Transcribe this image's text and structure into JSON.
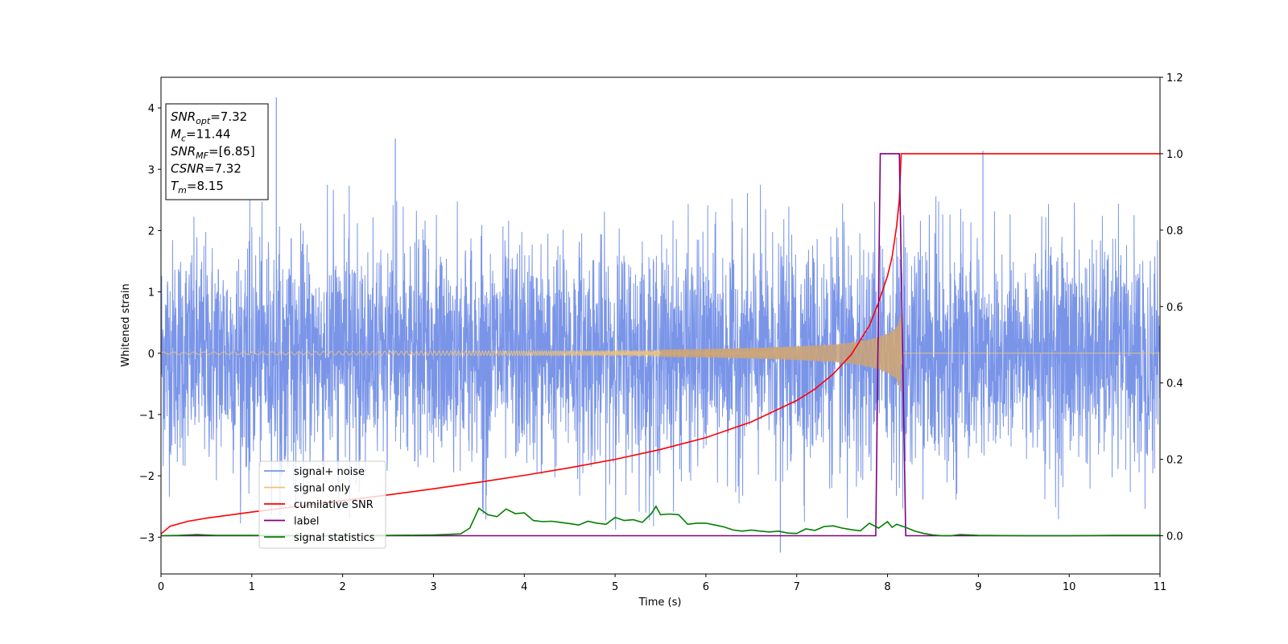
{
  "chart_data": {
    "type": "line",
    "xlabel": "Time (s)",
    "ylabel": "Whitened strain",
    "xlim": [
      0,
      11
    ],
    "ylim": [
      -3.6,
      4.5
    ],
    "y2lim": [
      -0.1,
      1.2
    ],
    "xticks": [
      "0",
      "1",
      "2",
      "3",
      "4",
      "5",
      "6",
      "7",
      "8",
      "9",
      "10",
      "11"
    ],
    "yticks": [
      {
        "value": 4,
        "label": "4"
      },
      {
        "value": 3,
        "label": "3"
      },
      {
        "value": 2,
        "label": "2"
      },
      {
        "value": 1,
        "label": "1"
      },
      {
        "value": 0,
        "label": "0"
      },
      {
        "value": -1,
        "label": "−1"
      },
      {
        "value": -2,
        "label": "−2"
      },
      {
        "value": -3,
        "label": "−3"
      }
    ],
    "y2ticks": [
      {
        "value": 1.2,
        "label": "1.2"
      },
      {
        "value": 1.0,
        "label": "1.0"
      },
      {
        "value": 0.8,
        "label": "0.8"
      },
      {
        "value": 0.6,
        "label": "0.6"
      },
      {
        "value": 0.4,
        "label": "0.4"
      },
      {
        "value": 0.2,
        "label": "0.2"
      },
      {
        "value": 0.0,
        "label": "0.0"
      }
    ],
    "legend_position": "lower-left",
    "info_box": [
      {
        "main": "SNR",
        "sub": "opt",
        "rest": "=7.32"
      },
      {
        "main": "M",
        "sub": "c",
        "rest": "=11.44"
      },
      {
        "main": "SNR",
        "sub": "MF",
        "rest": "=[6.85]"
      },
      {
        "main": "CSNR",
        "sub": "",
        "rest": "=7.32"
      },
      {
        "main": "T",
        "sub": "m",
        "rest": "=8.15"
      }
    ],
    "series": [
      {
        "name": "signal+ noise",
        "color": "#7a95e8",
        "axis": "left",
        "description_values": {
          "approx_amplitude_std": 0.9,
          "max": 4.17,
          "min": -3.25
        },
        "values_sampled": {
          "x": [
            0.0,
            0.5,
            1.0,
            1.27,
            1.5,
            2.0,
            2.58,
            3.0,
            3.5,
            4.0,
            4.5,
            5.0,
            5.5,
            6.0,
            6.5,
            6.82,
            7.0,
            7.5,
            8.0,
            8.5,
            9.0,
            9.5,
            10.0,
            10.5,
            11.0
          ],
          "upper": [
            2.7,
            2.5,
            2.6,
            4.17,
            2.6,
            2.9,
            3.5,
            3.3,
            2.8,
            2.4,
            2.7,
            2.7,
            3.0,
            3.1,
            2.9,
            2.6,
            2.6,
            2.5,
            2.7,
            2.6,
            3.3,
            2.7,
            2.6,
            2.6,
            2.2
          ],
          "lower": [
            -2.6,
            -3.0,
            -2.9,
            -2.7,
            -2.6,
            -2.7,
            -2.7,
            -2.8,
            -2.9,
            -2.7,
            -2.8,
            -3.2,
            -2.9,
            -3.2,
            -3.0,
            -3.25,
            -3.0,
            -2.8,
            -2.5,
            -2.7,
            -3.0,
            -2.8,
            -2.7,
            -2.7,
            -2.5
          ]
        }
      },
      {
        "name": "signal only",
        "color": "#f0c27a",
        "axis": "left",
        "envelope": {
          "x": [
            0.0,
            1.0,
            2.0,
            3.0,
            4.0,
            5.0,
            6.0,
            6.5,
            7.0,
            7.4,
            7.7,
            7.9,
            8.0,
            8.1,
            8.15,
            8.16,
            11.0
          ],
          "amp": [
            0.02,
            0.025,
            0.03,
            0.035,
            0.04,
            0.05,
            0.07,
            0.085,
            0.11,
            0.14,
            0.19,
            0.26,
            0.32,
            0.42,
            0.65,
            0.0,
            0.0
          ]
        }
      },
      {
        "name": "cumilative SNR",
        "color": "#ff0000",
        "axis": "right",
        "x": [
          0.0,
          0.1,
          0.3,
          0.5,
          1.0,
          1.5,
          2.0,
          2.5,
          3.0,
          3.5,
          4.0,
          4.5,
          5.0,
          5.5,
          6.0,
          6.5,
          7.0,
          7.2,
          7.4,
          7.6,
          7.8,
          7.9,
          8.0,
          8.05,
          8.1,
          8.13,
          8.15,
          11.0
        ],
        "y": [
          0.005,
          0.025,
          0.038,
          0.046,
          0.062,
          0.077,
          0.092,
          0.107,
          0.123,
          0.14,
          0.158,
          0.178,
          0.2,
          0.226,
          0.257,
          0.298,
          0.354,
          0.384,
          0.423,
          0.474,
          0.55,
          0.61,
          0.68,
          0.73,
          0.81,
          0.88,
          1.0,
          1.0
        ]
      },
      {
        "name": "label",
        "color": "#800080",
        "axis": "right",
        "x": [
          0.0,
          7.87,
          7.92,
          8.13,
          8.2,
          11.0
        ],
        "y": [
          0.0,
          0.0,
          1.0,
          1.0,
          0.0,
          0.0
        ]
      },
      {
        "name": "signal statistics",
        "color": "#008000",
        "axis": "right",
        "x": [
          0.0,
          0.2,
          0.4,
          0.6,
          1.0,
          1.5,
          2.0,
          2.5,
          3.0,
          3.3,
          3.4,
          3.5,
          3.6,
          3.7,
          3.8,
          3.9,
          4.0,
          4.1,
          4.2,
          4.3,
          4.4,
          4.5,
          4.6,
          4.7,
          4.8,
          4.9,
          5.0,
          5.1,
          5.2,
          5.3,
          5.4,
          5.45,
          5.5,
          5.6,
          5.7,
          5.8,
          5.9,
          6.0,
          6.1,
          6.2,
          6.3,
          6.4,
          6.5,
          6.6,
          6.7,
          6.8,
          6.9,
          7.0,
          7.1,
          7.2,
          7.3,
          7.4,
          7.5,
          7.6,
          7.7,
          7.8,
          7.9,
          8.0,
          8.05,
          8.1,
          8.2,
          8.3,
          8.4,
          8.5,
          8.6,
          8.7,
          8.8,
          9.0,
          9.5,
          10.0,
          10.5,
          11.0
        ],
        "y": [
          0.0,
          0.001,
          0.003,
          0.001,
          0.001,
          0.0,
          0.0,
          0.001,
          0.002,
          0.005,
          0.02,
          0.072,
          0.055,
          0.05,
          0.07,
          0.058,
          0.06,
          0.04,
          0.037,
          0.038,
          0.035,
          0.032,
          0.028,
          0.038,
          0.033,
          0.03,
          0.048,
          0.04,
          0.042,
          0.035,
          0.058,
          0.077,
          0.055,
          0.057,
          0.055,
          0.03,
          0.033,
          0.033,
          0.028,
          0.023,
          0.015,
          0.012,
          0.015,
          0.012,
          0.01,
          0.012,
          0.007,
          0.006,
          0.018,
          0.014,
          0.024,
          0.026,
          0.02,
          0.016,
          0.013,
          0.033,
          0.02,
          0.037,
          0.022,
          0.03,
          0.022,
          0.012,
          0.006,
          0.002,
          0.0,
          0.0,
          0.003,
          0.001,
          0.0,
          0.0,
          0.001,
          0.001
        ]
      }
    ]
  }
}
